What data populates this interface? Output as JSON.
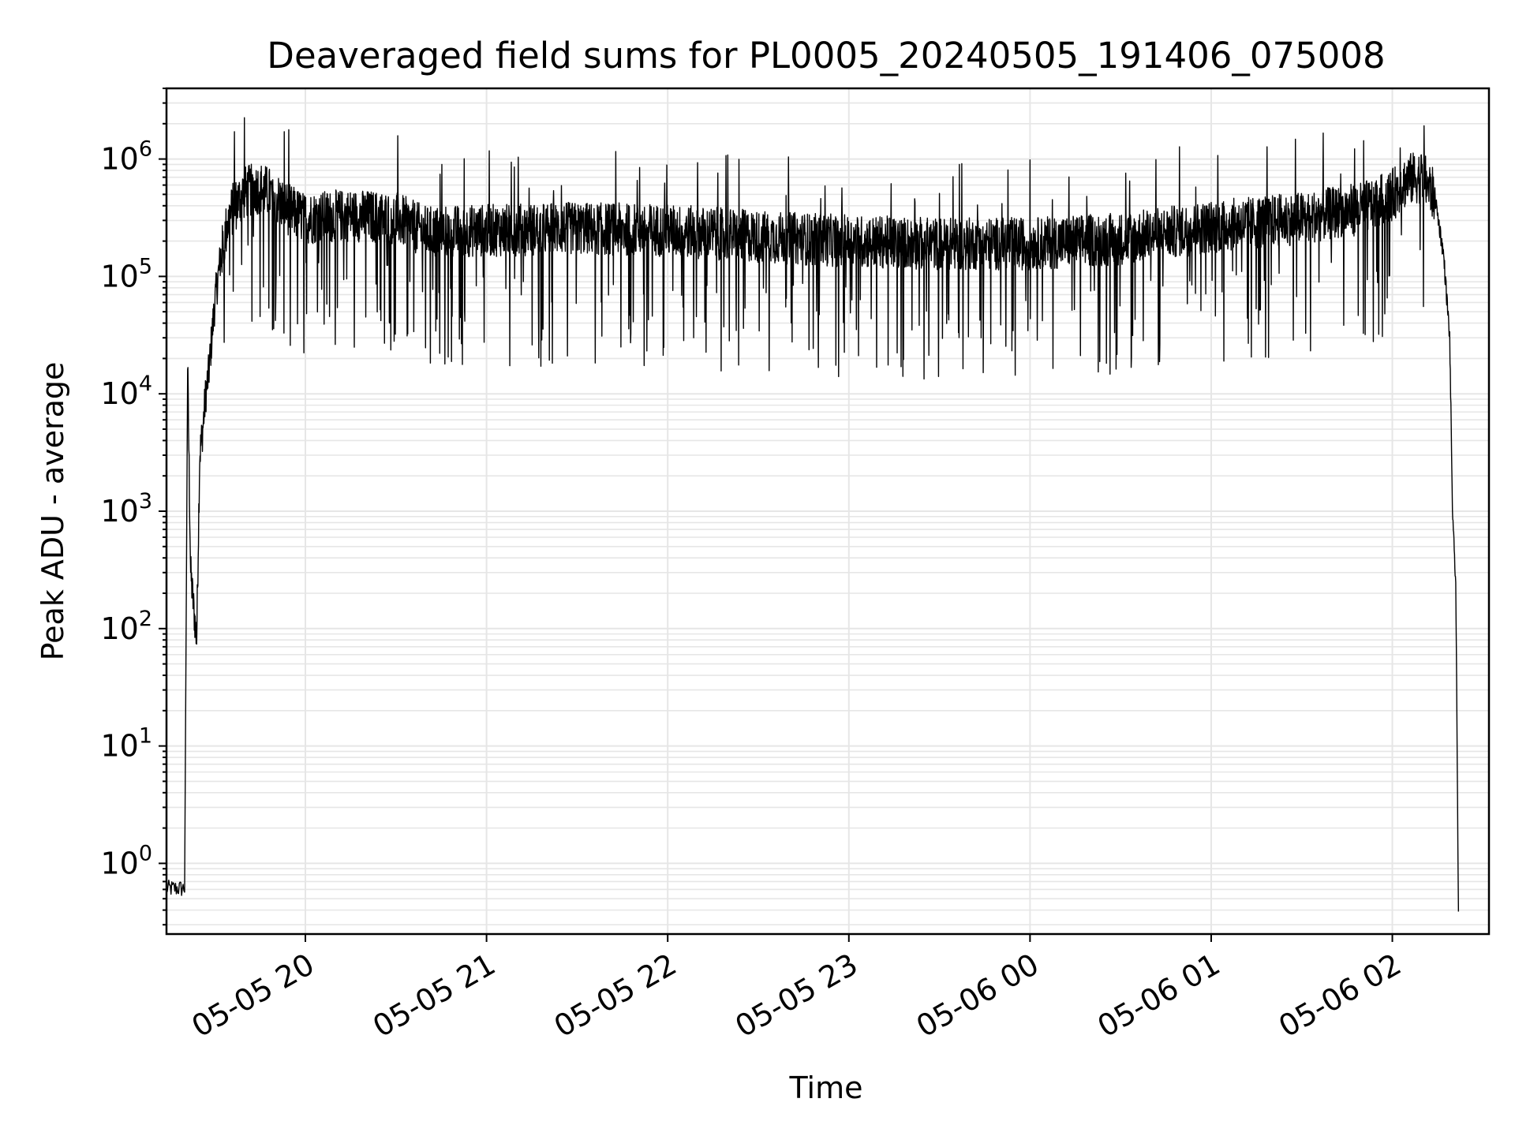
{
  "chart_data": {
    "type": "line",
    "title": "Deaveraged field sums for PL0005_20240505_191406_075008",
    "xlabel": "Time",
    "ylabel": "Peak ADU - average",
    "yscale": "log",
    "grid": true,
    "line_color": "#000000",
    "grid_color": "#e6e6e6",
    "x_ticks": [
      "05-05 20",
      "05-05 21",
      "05-05 22",
      "05-05 23",
      "05-06 00",
      "05-06 01",
      "05-06 02"
    ],
    "y_ticks": [
      {
        "base": "10",
        "exp": "0",
        "value": 1
      },
      {
        "base": "10",
        "exp": "1",
        "value": 10
      },
      {
        "base": "10",
        "exp": "2",
        "value": 100
      },
      {
        "base": "10",
        "exp": "3",
        "value": 1000
      },
      {
        "base": "10",
        "exp": "4",
        "value": 10000
      },
      {
        "base": "10",
        "exp": "5",
        "value": 100000
      },
      {
        "base": "10",
        "exp": "6",
        "value": 1000000
      }
    ],
    "xlim": [
      "2024-05-05 19:14",
      "2024-05-06 02:32"
    ],
    "ylim": [
      0.25,
      4000000
    ],
    "series": [
      {
        "x": [
          "2024-05-05 19:14",
          "2024-05-05 19:20",
          "2024-05-05 19:21",
          "2024-05-05 19:22",
          "2024-05-05 19:23",
          "2024-05-05 19:24",
          "2024-05-05 19:25",
          "2024-05-05 19:26",
          "2024-05-05 19:27",
          "2024-05-05 19:28",
          "2024-05-05 19:30",
          "2024-05-05 19:32",
          "2024-05-05 19:34",
          "2024-05-05 19:36",
          "2024-05-05 19:40",
          "2024-05-05 19:45",
          "2024-05-05 19:50",
          "2024-05-05 19:55",
          "2024-05-05 20:00",
          "2024-05-05 20:15",
          "2024-05-05 20:30",
          "2024-05-05 20:40",
          "2024-05-05 21:00",
          "2024-05-05 21:30",
          "2024-05-05 22:00",
          "2024-05-05 22:30",
          "2024-05-05 23:00",
          "2024-05-05 23:30",
          "2024-05-06 00:00",
          "2024-05-06 00:30",
          "2024-05-06 01:00",
          "2024-05-06 01:30",
          "2024-05-06 01:50",
          "2024-05-06 02:00",
          "2024-05-06 02:05",
          "2024-05-06 02:10",
          "2024-05-06 02:14",
          "2024-05-06 02:17",
          "2024-05-06 02:19",
          "2024-05-06 02:20",
          "2024-05-06 02:21",
          "2024-05-06 02:22"
        ],
        "y": [
          0.6,
          0.6,
          18000,
          300,
          150,
          80,
          3000,
          5000,
          10000,
          15000,
          60000,
          150000,
          280000,
          400000,
          550000,
          600000,
          500000,
          380000,
          330000,
          350000,
          330000,
          250000,
          260000,
          270000,
          260000,
          230000,
          210000,
          200000,
          200000,
          220000,
          280000,
          330000,
          400000,
          520000,
          700000,
          750000,
          500000,
          150000,
          30000,
          800,
          250,
          0.2
        ]
      }
    ]
  }
}
